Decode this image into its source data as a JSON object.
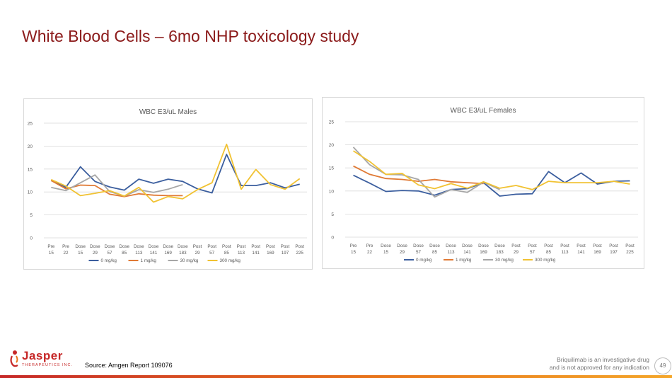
{
  "slide": {
    "title": "White Blood Cells – 6mo NHP toxicology study",
    "source": "Source: Amgen Report 109076",
    "disclaimer_line1": "Briquilimab is an investigative drug",
    "disclaimer_line2": "and is not approved for any indication",
    "page_number": "49",
    "logo_name": "Jasper",
    "logo_tagline": "THERAPEUTICS INC."
  },
  "colors": {
    "series": [
      "#3b5e9e",
      "#e07a35",
      "#a6a6a6",
      "#f1c232"
    ],
    "grid": "#d9d9d9",
    "axis_text": "#595959"
  },
  "chart_data": [
    {
      "type": "line",
      "title": "WBC E3/uL Males",
      "ylim": [
        0,
        25
      ],
      "yticks": [
        0,
        5,
        10,
        15,
        20,
        25
      ],
      "grid": true,
      "legend_position": "bottom",
      "categories": [
        "Pre 15",
        "Pre 22",
        "Dose 15",
        "Dose 29",
        "Dose 57",
        "Dose 85",
        "Dose 113",
        "Dose 141",
        "Dose 169",
        "Dose 183",
        "Post 29",
        "Post 57",
        "Post 85",
        "Post 113",
        "Post 141",
        "Post 169",
        "Post 197",
        "Post 225"
      ],
      "series": [
        {
          "name": "0 mg/kg",
          "values": [
            12.5,
            11.0,
            15.5,
            12.3,
            11.1,
            10.4,
            12.8,
            11.9,
            12.8,
            12.3,
            10.7,
            9.8,
            18.2,
            11.4,
            11.4,
            12.0,
            10.9,
            11.7
          ]
        },
        {
          "name": "1 mg/kg",
          "values": [
            12.5,
            10.7,
            11.5,
            11.4,
            9.5,
            9.0,
            9.6,
            9.3,
            9.2,
            9.2,
            null,
            null,
            null,
            null,
            null,
            null,
            null,
            null
          ]
        },
        {
          "name": "30 mg/kg",
          "values": [
            11.0,
            10.3,
            12.0,
            13.7,
            10.1,
            9.1,
            10.5,
            9.9,
            10.6,
            11.6,
            null,
            null,
            null,
            null,
            null,
            null,
            null,
            null
          ]
        },
        {
          "name": "300 mg/kg",
          "values": [
            12.7,
            11.3,
            9.2,
            9.7,
            10.3,
            9.1,
            11.0,
            7.8,
            9.0,
            8.5,
            10.5,
            12.0,
            20.4,
            10.6,
            14.9,
            11.6,
            10.6,
            12.9
          ]
        }
      ]
    },
    {
      "type": "line",
      "title": "WBC E3/uL Females",
      "ylim": [
        0,
        25
      ],
      "yticks": [
        0,
        5,
        10,
        15,
        20,
        25
      ],
      "grid": true,
      "legend_position": "bottom",
      "categories": [
        "Pre 15",
        "Pre 22",
        "Dose 15",
        "Dose 29",
        "Dose 57",
        "Dose 85",
        "Dose 113",
        "Dose 141",
        "Dose 169",
        "Dose 183",
        "Post 29",
        "Post 57",
        "Post 85",
        "Post 113",
        "Post 141",
        "Post 169",
        "Post 197",
        "Post 225"
      ],
      "series": [
        {
          "name": "0 mg/kg",
          "values": [
            13.4,
            11.7,
            9.9,
            10.1,
            10.0,
            9.1,
            10.3,
            10.5,
            11.8,
            8.9,
            9.3,
            9.4,
            14.2,
            11.8,
            13.9,
            11.5,
            12.1,
            12.2
          ]
        },
        {
          "name": "1 mg/kg",
          "values": [
            15.4,
            13.6,
            12.7,
            12.5,
            12.1,
            12.5,
            12.0,
            11.8,
            11.6,
            null,
            null,
            null,
            null,
            null,
            null,
            null,
            null,
            null
          ]
        },
        {
          "name": "30 mg/kg",
          "values": [
            19.5,
            15.7,
            13.6,
            13.5,
            12.5,
            8.7,
            10.3,
            9.7,
            11.9,
            10.3,
            null,
            null,
            null,
            null,
            null,
            null,
            null,
            null
          ]
        },
        {
          "name": "300 mg/kg",
          "values": [
            18.7,
            16.4,
            13.6,
            13.8,
            11.3,
            10.5,
            11.6,
            10.6,
            12.0,
            10.6,
            11.2,
            10.3,
            12.1,
            11.8,
            11.8,
            11.8,
            12.1,
            11.5
          ]
        }
      ]
    }
  ]
}
